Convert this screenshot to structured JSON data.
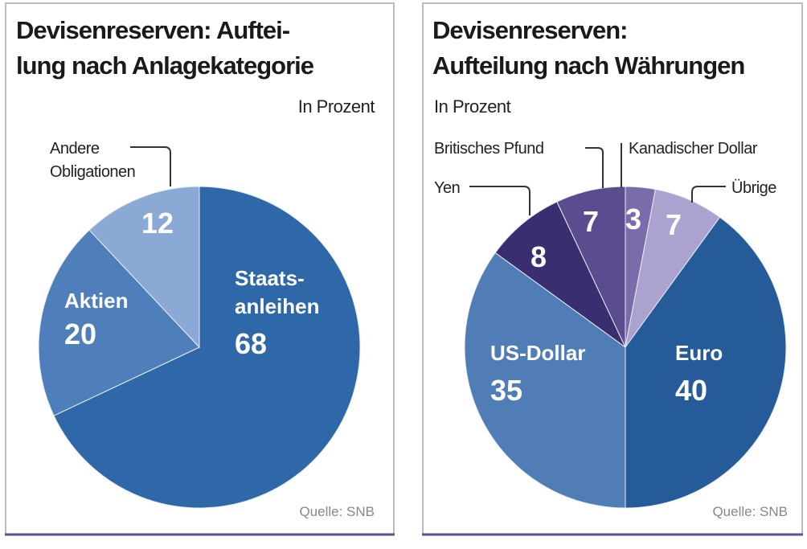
{
  "chart_data": [
    {
      "type": "pie",
      "title_lines": [
        "Devisenreserven: Auftei-",
        "lung nach Anlagekategorie"
      ],
      "unit": "In Prozent",
      "source": "Quelle: SNB",
      "slices": [
        {
          "label": "Staats-anleihen",
          "label_lines": [
            "Staats-",
            "anleihen"
          ],
          "value": 68,
          "color": "#2f68a9"
        },
        {
          "label": "Aktien",
          "label_lines": [
            "Aktien"
          ],
          "value": 20,
          "color": "#4f7fba"
        },
        {
          "label": "Andere Obligationen",
          "label_lines": [
            "Andere",
            "Obligationen"
          ],
          "value": 12,
          "color": "#8ba9d5"
        }
      ]
    },
    {
      "type": "pie",
      "title_lines": [
        "Devisenreserven:",
        "Aufteilung nach Währungen"
      ],
      "unit": "In Prozent",
      "source": "Quelle: SNB",
      "slices": [
        {
          "label": "Kanadischer Dollar",
          "value": 3,
          "color": "#7b6bab"
        },
        {
          "label": "Übrige",
          "value": 7,
          "color": "#aba2cf"
        },
        {
          "label": "Euro",
          "value": 40,
          "color": "#245b98"
        },
        {
          "label": "US-Dollar",
          "value": 35,
          "color": "#507db6"
        },
        {
          "label": "Yen",
          "value": 8,
          "color": "#3b2e70"
        },
        {
          "label": "Britisches Pfund",
          "value": 7,
          "color": "#5b4c90"
        }
      ]
    }
  ]
}
